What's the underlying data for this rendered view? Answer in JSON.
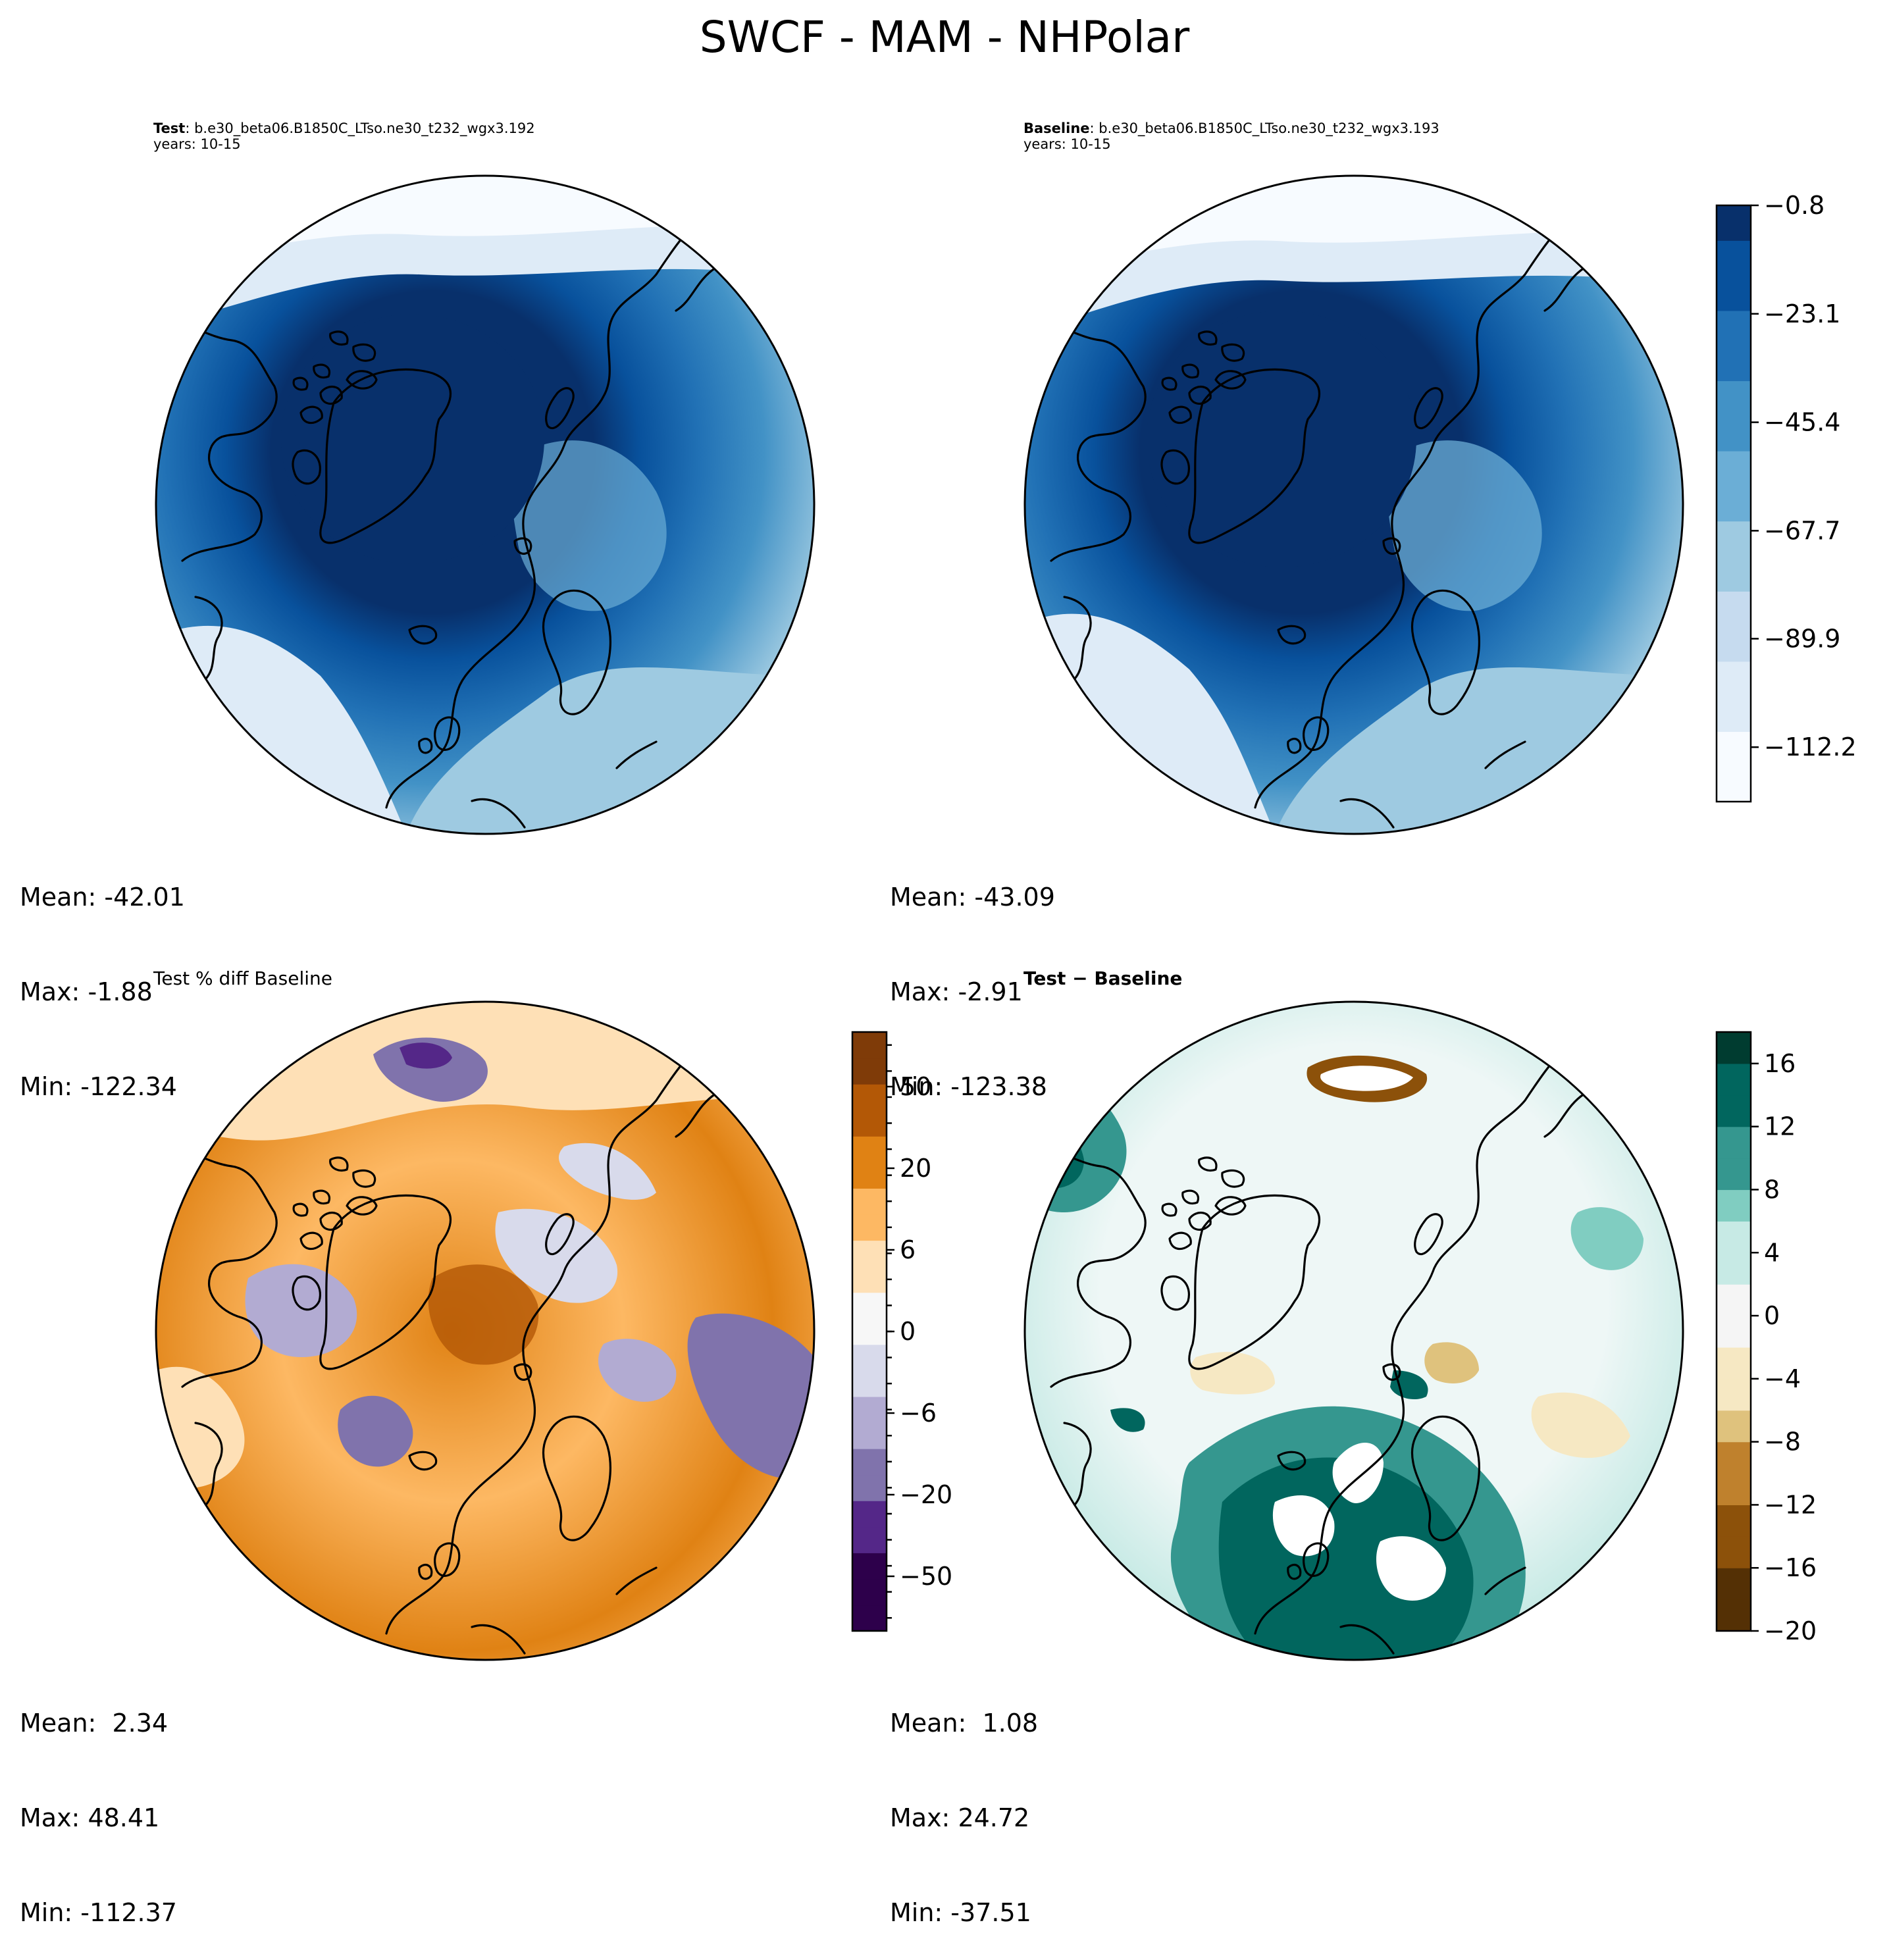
{
  "figure": {
    "title": "SWCF - MAM - NHPolar"
  },
  "panels": {
    "test": {
      "label": "Test",
      "case": "b.e30_beta06.B1850C_LTso.ne30_t232_wgx3.192",
      "years": "years: 10-15",
      "stats": {
        "mean": "Mean: -42.01",
        "max": "Max: -1.88",
        "min": "Min: -122.34"
      }
    },
    "baseline": {
      "label": "Baseline",
      "case": "b.e30_beta06.B1850C_LTso.ne30_t232_wgx3.193",
      "years": "years: 10-15",
      "stats": {
        "mean": "Mean: -43.09",
        "max": "Max: -2.91",
        "min": "Min: -123.38"
      }
    },
    "pctdiff": {
      "title": "Test % diff Baseline",
      "stats": {
        "mean": "Mean:  2.34",
        "max": "Max: 48.41",
        "min": "Min: -112.37"
      }
    },
    "diff": {
      "title_a": "Test",
      "title_sep": " − ",
      "title_b": "Baseline",
      "stats": {
        "mean": "Mean:  1.08",
        "max": "Max: 24.72",
        "min": "Min: -37.51"
      }
    }
  },
  "chart_data": [
    {
      "type": "heatmap",
      "name": "Test",
      "projection": "north-polar-stereographic",
      "mean": -42.01,
      "max": -1.88,
      "min": -122.34
    },
    {
      "type": "heatmap",
      "name": "Baseline",
      "projection": "north-polar-stereographic",
      "mean": -43.09,
      "max": -2.91,
      "min": -123.38
    },
    {
      "type": "heatmap",
      "name": "Test % diff Baseline",
      "projection": "north-polar-stereographic",
      "mean": 2.34,
      "max": 48.41,
      "min": -112.37
    },
    {
      "type": "heatmap",
      "name": "Test - Baseline",
      "projection": "north-polar-stereographic",
      "mean": 1.08,
      "max": 24.72,
      "min": -37.51
    }
  ],
  "colorbars": {
    "shared": {
      "ticks": [
        "−0.8",
        "−23.1",
        "−45.4",
        "−67.7",
        "−89.9",
        "−112.2"
      ],
      "tick_values": [
        -0.8,
        -23.1,
        -45.4,
        -67.7,
        -89.9,
        -112.2
      ],
      "range": [
        -123.4,
        -0.8
      ],
      "colors": [
        "#f7fbff",
        "#deebf7",
        "#c6dbef",
        "#9ecae1",
        "#6baed6",
        "#4292c6",
        "#2171b5",
        "#08519c",
        "#08306b"
      ]
    },
    "pctdiff": {
      "ticks": [
        "50",
        "20",
        "6",
        "0",
        "−6",
        "−20",
        "−50"
      ],
      "colors": [
        "#2d004b",
        "#542788",
        "#8073ac",
        "#b2abd2",
        "#d8daeb",
        "#f7f7f7",
        "#fee0b6",
        "#fdb863",
        "#e08214",
        "#b35806",
        "#7f3b08"
      ]
    },
    "diff": {
      "ticks": [
        "16",
        "12",
        "8",
        "4",
        "0",
        "−4",
        "−8",
        "−12",
        "−16",
        "−20"
      ],
      "tick_values": [
        16,
        12,
        8,
        4,
        0,
        -4,
        -8,
        -12,
        -16,
        -20
      ],
      "range": [
        -20,
        18
      ],
      "colors": [
        "#543005",
        "#8c510a",
        "#bf812d",
        "#dfc27d",
        "#f6e8c3",
        "#f5f5f5",
        "#c7eae5",
        "#80cdc1",
        "#35978f",
        "#01665e",
        "#003c30"
      ]
    }
  }
}
